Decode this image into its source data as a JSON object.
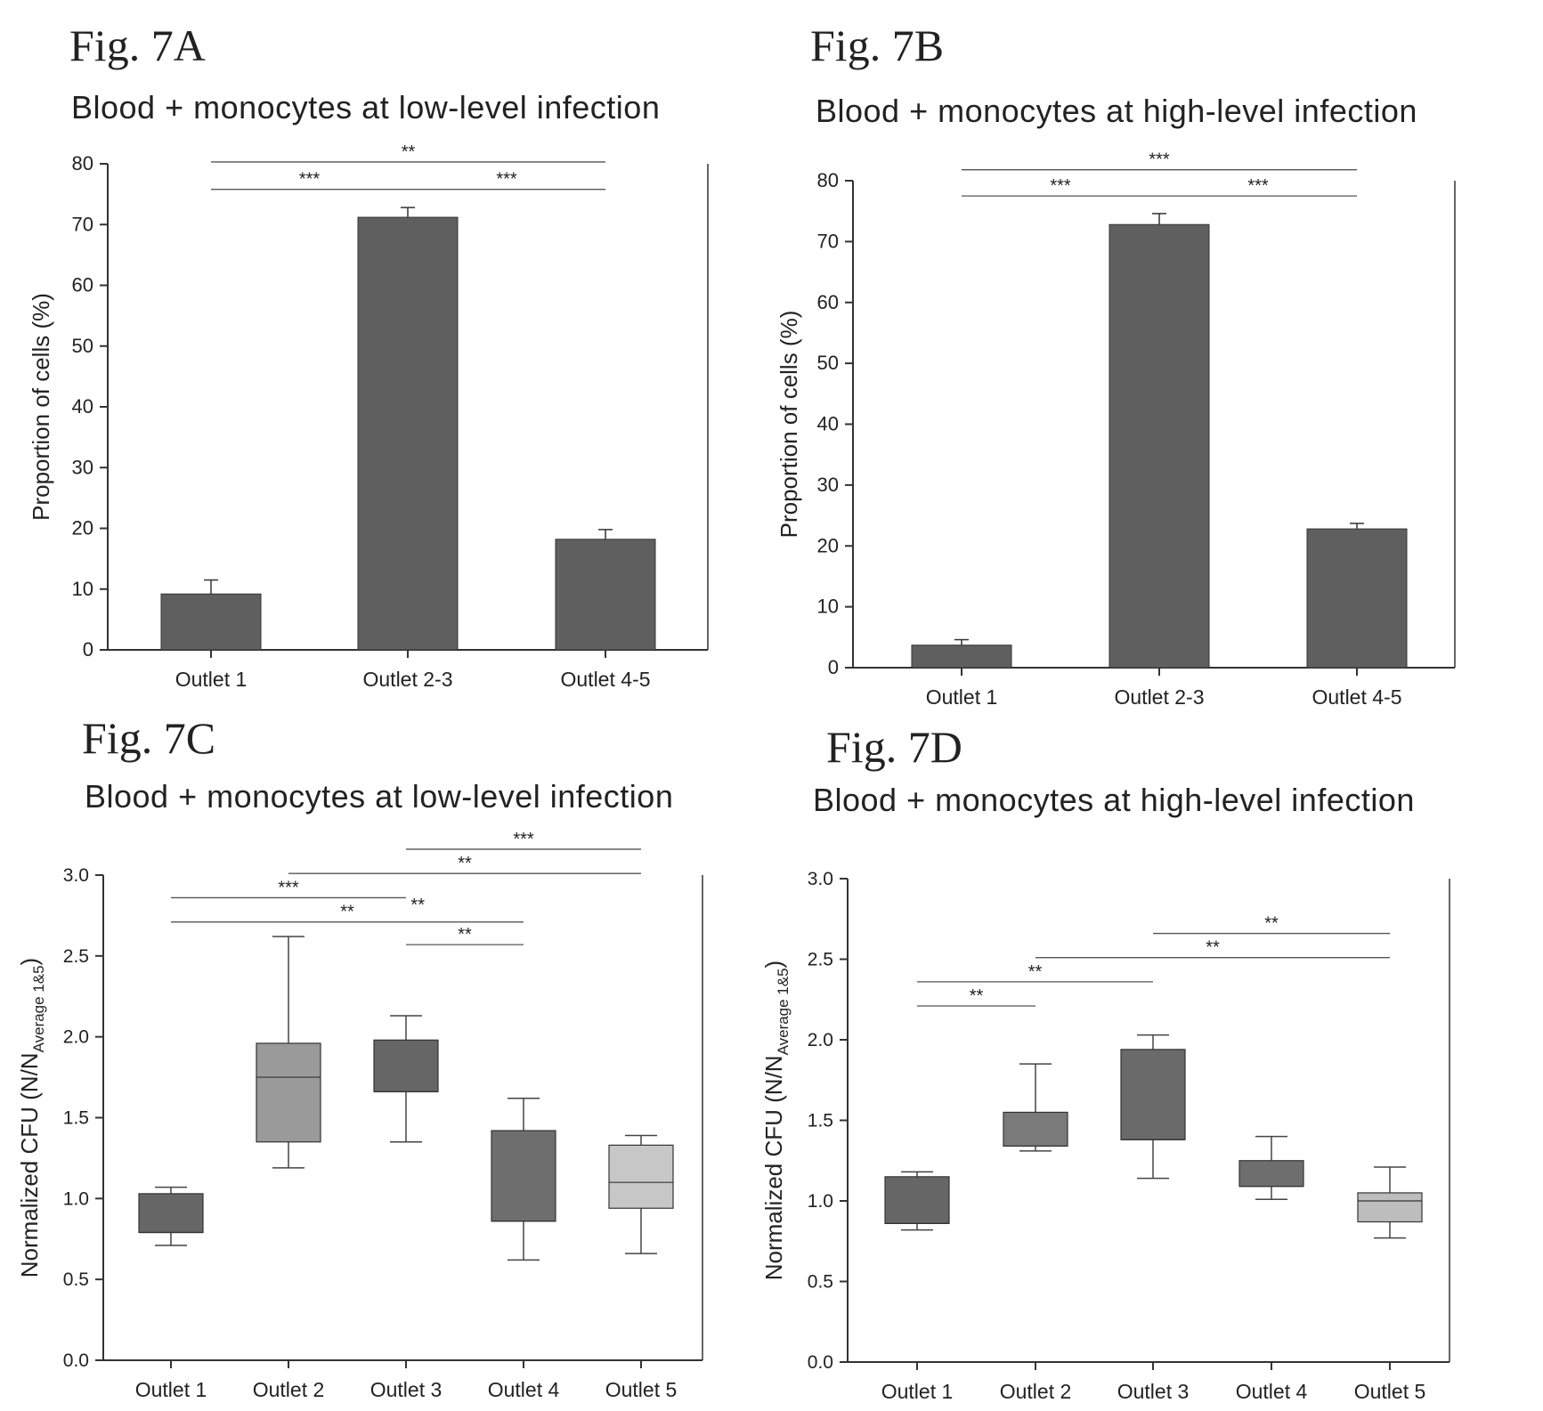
{
  "chart_data": [
    {
      "id": "A",
      "figure_label": "Fig. 7A",
      "type": "bar",
      "title": "Blood + monocytes at low-level infection",
      "ylabel": "Proportion of cells (%)",
      "xlabel": "",
      "ylim": [
        0,
        80
      ],
      "yticks": [
        "0",
        "10",
        "20",
        "30",
        "40",
        "50",
        "60",
        "70",
        "80"
      ],
      "categories": [
        "Outlet 1",
        "Outlet 2-3",
        "Outlet 4-5"
      ],
      "values": [
        9.2,
        71.2,
        18.2
      ],
      "errors": [
        2.3,
        1.6,
        1.6
      ],
      "bar_color": "#5f5f5f",
      "significance": [
        {
          "from": 0,
          "to": 2,
          "label": "**",
          "y": 80.3
        },
        {
          "from": 0,
          "to": 1,
          "label": "***",
          "y": 75.8
        },
        {
          "from": 1,
          "to": 2,
          "label": "***",
          "y": 75.8
        }
      ]
    },
    {
      "id": "B",
      "figure_label": "Fig. 7B",
      "type": "bar",
      "title": "Blood + monocytes at high-level infection",
      "ylabel": "Proportion of cells (%)",
      "xlabel": "",
      "ylim": [
        0,
        80
      ],
      "yticks": [
        "0",
        "10",
        "20",
        "30",
        "40",
        "50",
        "60",
        "70",
        "80"
      ],
      "categories": [
        "Outlet 1",
        "Outlet 2-3",
        "Outlet 4-5"
      ],
      "values": [
        3.7,
        72.8,
        22.8
      ],
      "errors": [
        0.9,
        1.8,
        0.9
      ],
      "bar_color": "#5f5f5f",
      "significance": [
        {
          "from": 0,
          "to": 2,
          "label": "***",
          "y": 81.8
        },
        {
          "from": 0,
          "to": 1,
          "label": "***",
          "y": 77.5
        },
        {
          "from": 1,
          "to": 2,
          "label": "***",
          "y": 77.5
        }
      ]
    },
    {
      "id": "C",
      "figure_label": "Fig. 7C",
      "type": "box",
      "title": "Blood + monocytes at low-level infection",
      "ylabel_main": "Normalized CFU (N/N",
      "ylabel_sub": "Average 1&5",
      "ylabel_end": ")",
      "xlabel": "",
      "ylim": [
        0,
        3
      ],
      "yticks": [
        "0.0",
        "0.5",
        "1.0",
        "1.5",
        "2.0",
        "2.5",
        "3.0"
      ],
      "categories": [
        "Outlet 1",
        "Outlet 2",
        "Outlet 3",
        "Outlet 4",
        "Outlet 5"
      ],
      "boxes": [
        {
          "min": 0.71,
          "q1": 0.79,
          "median": 0.79,
          "q3": 1.03,
          "max": 1.07,
          "color": "#666666"
        },
        {
          "min": 1.19,
          "q1": 1.35,
          "median": 1.75,
          "q3": 1.96,
          "max": 2.62,
          "color": "#9a9a9a"
        },
        {
          "min": 1.35,
          "q1": 1.66,
          "median": 1.66,
          "q3": 1.98,
          "max": 2.13,
          "color": "#666666"
        },
        {
          "min": 0.62,
          "q1": 0.86,
          "median": 0.86,
          "q3": 1.42,
          "max": 1.62,
          "color": "#6e6e6e"
        },
        {
          "min": 0.66,
          "q1": 0.94,
          "median": 1.1,
          "q3": 1.33,
          "max": 1.39,
          "color": "#c7c7c7"
        }
      ],
      "significance": [
        {
          "from": 2,
          "to": 4,
          "label": "***",
          "y": 3.16
        },
        {
          "from": 1,
          "to": 4,
          "label": "**",
          "y": 3.01
        },
        {
          "from": 0,
          "to": 2,
          "label": "***",
          "y": 2.86
        },
        {
          "from": 0,
          "to": 3,
          "label": "**",
          "y": 2.71
        },
        {
          "from": 2,
          "to": 3,
          "label": "**",
          "y": 2.57
        }
      ],
      "extra_star_labels": [
        {
          "label": "**",
          "x_cat": 2.1,
          "y": 2.78
        }
      ]
    },
    {
      "id": "D",
      "figure_label": "Fig. 7D",
      "type": "box",
      "title": "Blood + monocytes at high-level infection",
      "ylabel_main": "Normalized CFU (N/N",
      "ylabel_sub": "Average 1&5",
      "ylabel_end": ")",
      "xlabel": "",
      "ylim": [
        0,
        3
      ],
      "yticks": [
        "0.0",
        "0.5",
        "1.0",
        "1.5",
        "2.0",
        "2.5",
        "3.0"
      ],
      "categories": [
        "Outlet 1",
        "Outlet 2",
        "Outlet 3",
        "Outlet 4",
        "Outlet 5"
      ],
      "boxes": [
        {
          "min": 0.82,
          "q1": 0.86,
          "median": 0.86,
          "q3": 1.15,
          "max": 1.18,
          "color": "#666666"
        },
        {
          "min": 1.31,
          "q1": 1.34,
          "median": 1.34,
          "q3": 1.55,
          "max": 1.85,
          "color": "#7a7a7a"
        },
        {
          "min": 1.14,
          "q1": 1.38,
          "median": 1.38,
          "q3": 1.94,
          "max": 2.03,
          "color": "#6a6a6a"
        },
        {
          "min": 1.01,
          "q1": 1.09,
          "median": 1.09,
          "q3": 1.25,
          "max": 1.4,
          "color": "#6e6e6e"
        },
        {
          "min": 0.77,
          "q1": 0.87,
          "median": 1.0,
          "q3": 1.05,
          "max": 1.21,
          "color": "#bdbdbd"
        }
      ],
      "significance": [
        {
          "from": 2,
          "to": 4,
          "label": "**",
          "y": 2.66
        },
        {
          "from": 1,
          "to": 4,
          "label": "**",
          "y": 2.51
        },
        {
          "from": 0,
          "to": 2,
          "label": "**",
          "y": 2.36
        },
        {
          "from": 0,
          "to": 1,
          "label": "**",
          "y": 2.21
        }
      ]
    }
  ]
}
